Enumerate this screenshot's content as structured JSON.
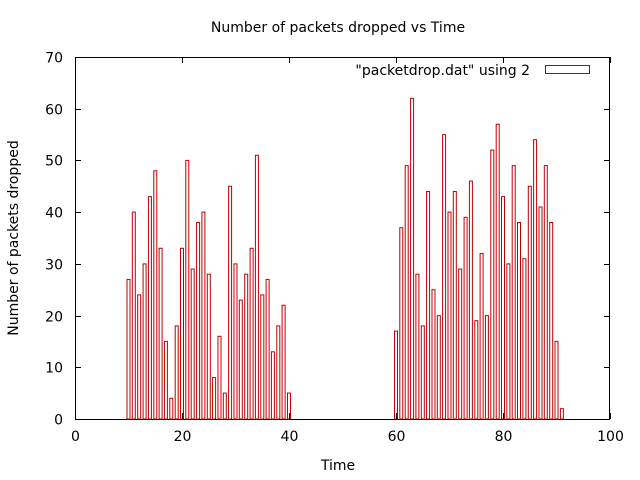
{
  "chart_data": {
    "type": "bar",
    "title": "Number of packets dropped vs Time",
    "xlabel": "Time",
    "ylabel": "Number of packets dropped",
    "xlim": [
      0,
      100
    ],
    "ylim": [
      0,
      70
    ],
    "xticks": [
      0,
      20,
      40,
      60,
      80,
      100
    ],
    "yticks": [
      0,
      10,
      20,
      30,
      40,
      50,
      60,
      70
    ],
    "grid": false,
    "legend_position": "top-right",
    "series_color": "#c00000",
    "series": [
      {
        "name": "\"packetdrop.dat\" using 2",
        "x": [
          10,
          11,
          12,
          13,
          14,
          15,
          16,
          17,
          18,
          19,
          20,
          21,
          22,
          23,
          24,
          25,
          26,
          27,
          28,
          29,
          30,
          31,
          32,
          33,
          34,
          35,
          36,
          37,
          38,
          39,
          40,
          60,
          61,
          62,
          63,
          64,
          65,
          66,
          67,
          68,
          69,
          70,
          71,
          72,
          73,
          74,
          75,
          76,
          77,
          78,
          79,
          80,
          81,
          82,
          83,
          84,
          85,
          86,
          87,
          88,
          89,
          90,
          91
        ],
        "values": [
          27,
          40,
          24,
          30,
          43,
          48,
          33,
          15,
          4,
          18,
          33,
          50,
          29,
          38,
          40,
          28,
          8,
          16,
          5,
          45,
          30,
          23,
          28,
          33,
          51,
          24,
          27,
          13,
          18,
          22,
          5,
          17,
          37,
          49,
          62,
          28,
          18,
          44,
          25,
          20,
          55,
          40,
          44,
          29,
          39,
          46,
          19,
          32,
          20,
          52,
          57,
          43,
          30,
          49,
          38,
          31,
          45,
          54,
          41,
          49,
          38,
          15,
          2
        ]
      }
    ]
  }
}
